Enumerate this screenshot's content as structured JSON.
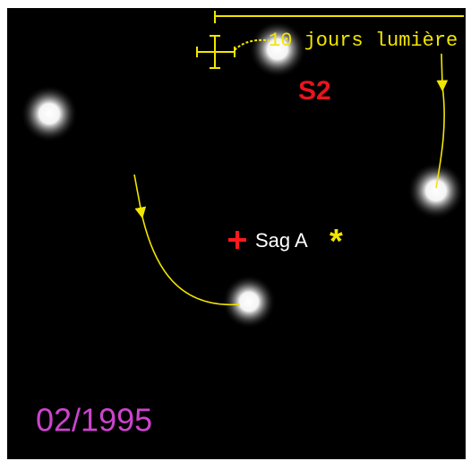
{
  "scale_label": "10 jours lumière",
  "star_label": "S2",
  "center_label": "Sag A",
  "center_symbol": "*",
  "date": "02/1995"
}
